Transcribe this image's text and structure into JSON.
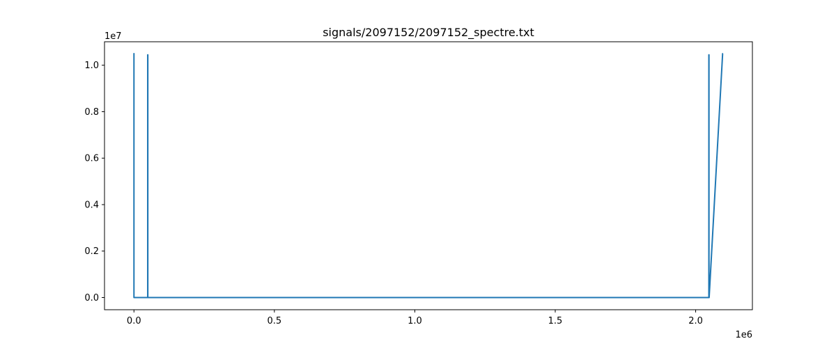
{
  "chart_data": {
    "type": "line",
    "title": "signals/2097152/2097152_spectre.txt",
    "xlabel": "",
    "ylabel": "",
    "x_offset_label": "1e6",
    "y_offset_label": "1e7",
    "xlim": [
      -104858,
      2202010
    ],
    "ylim": [
      -524288,
      11010048
    ],
    "xticks": [
      {
        "value": 0,
        "label": "0.0"
      },
      {
        "value": 500000,
        "label": "0.5"
      },
      {
        "value": 1000000,
        "label": "1.0"
      },
      {
        "value": 1500000,
        "label": "1.5"
      },
      {
        "value": 2000000,
        "label": "2.0"
      }
    ],
    "yticks": [
      {
        "value": 0,
        "label": "0.0"
      },
      {
        "value": 2000000,
        "label": "0.2"
      },
      {
        "value": 4000000,
        "label": "0.4"
      },
      {
        "value": 6000000,
        "label": "0.6"
      },
      {
        "value": 8000000,
        "label": "0.8"
      },
      {
        "value": 10000000,
        "label": "1.0"
      }
    ],
    "grid": false,
    "legend": "none",
    "series": [
      {
        "color": "#1f77b4",
        "x": [
          0,
          0,
          0,
          800,
          49000,
          49000,
          49400,
          49400,
          50000,
          2047000,
          2047000,
          2047400,
          2047400,
          2048000,
          2096000,
          2097151
        ],
        "y": [
          900000,
          10500000,
          0,
          0,
          0,
          10450000,
          10450000,
          0,
          0,
          0,
          10450000,
          10450000,
          0,
          0,
          10500000,
          10500000
        ]
      }
    ]
  }
}
